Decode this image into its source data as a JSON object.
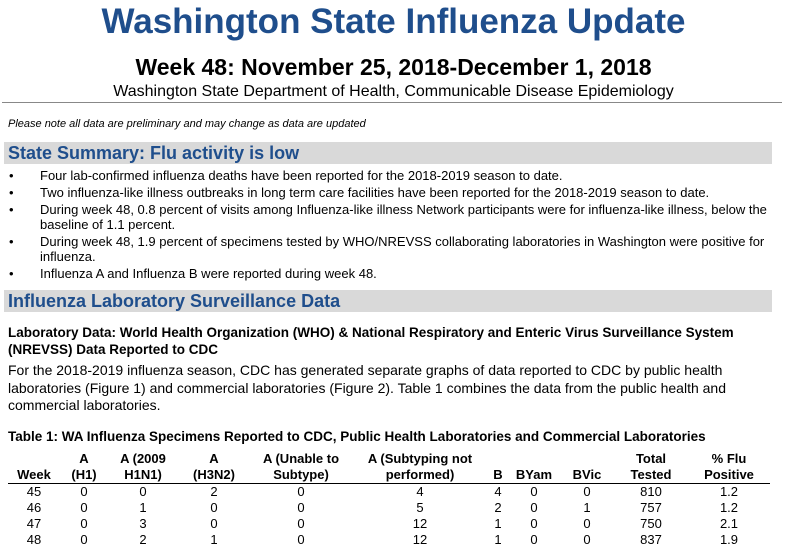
{
  "header": {
    "title": "Washington State Influenza Update",
    "subtitle": "Week 48: November 25, 2018-December 1, 2018",
    "department": "Washington State Department of Health, Communicable Disease Epidemiology"
  },
  "note": "Please note all data are preliminary and may change as data are updated",
  "summary": {
    "heading": "State Summary: Flu activity is low",
    "bullets": [
      "Four lab-confirmed influenza deaths have been reported for the 2018-2019 season to date.",
      "Two influenza-like illness outbreaks in long term care facilities have been reported for the 2018-2019 season to date.",
      "During week 48, 0.8 percent of visits among Influenza-like illness Network participants were for influenza-like illness, below the baseline of 1.1 percent.",
      "During week 48, 1.9 percent of specimens tested by WHO/NREVSS collaborating laboratories in Washington were positive for influenza.",
      "Influenza A and Influenza B were reported during week 48."
    ]
  },
  "lab": {
    "heading": "Influenza Laboratory Surveillance Data",
    "subheading": "Laboratory Data: World Health Organization (WHO) & National Respiratory and Enteric Virus Surveillance System (NREVSS) Data Reported to CDC",
    "paragraph": "For the 2018-2019 influenza season, CDC has generated separate graphs of data reported to CDC by public health laboratories (Figure 1) and commercial laboratories (Figure 2). Table 1 combines the data from the public health and commercial laboratories."
  },
  "table": {
    "title": "Table 1: WA Influenza Specimens Reported to CDC, Public Health Laboratories and Commercial Laboratories",
    "columns": [
      [
        "Week"
      ],
      [
        "A",
        "(H1)"
      ],
      [
        "A (2009",
        "H1N1)"
      ],
      [
        "A",
        "(H3N2)"
      ],
      [
        "A (Unable to",
        "Subtype)"
      ],
      [
        "A (Subtyping not",
        "performed)"
      ],
      [
        "B"
      ],
      [
        "BYam"
      ],
      [
        "BVic"
      ],
      [
        "Total",
        "Tested"
      ],
      [
        "% Flu",
        "Positive"
      ]
    ],
    "rows": [
      [
        45,
        0,
        0,
        2,
        0,
        4,
        4,
        0,
        0,
        810,
        1.2
      ],
      [
        46,
        0,
        1,
        0,
        0,
        5,
        2,
        0,
        1,
        757,
        1.2
      ],
      [
        47,
        0,
        3,
        0,
        0,
        12,
        1,
        0,
        0,
        750,
        2.1
      ],
      [
        48,
        0,
        2,
        1,
        0,
        12,
        1,
        0,
        0,
        837,
        1.9
      ]
    ]
  }
}
